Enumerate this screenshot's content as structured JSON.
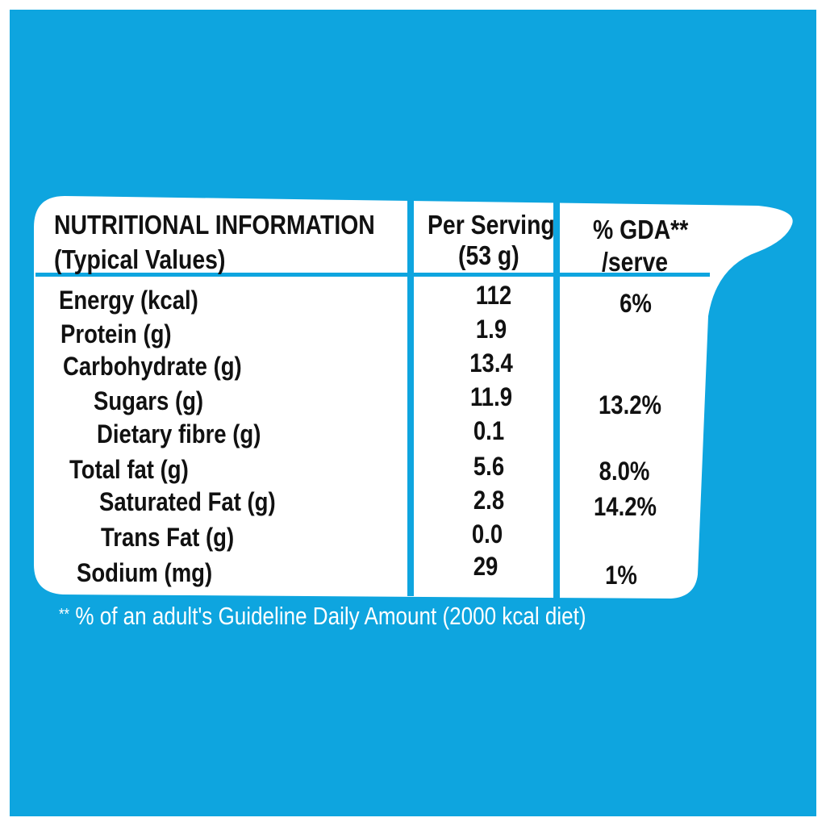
{
  "colors": {
    "background": "#0ea5df",
    "card": "#ffffff",
    "text": "#111111"
  },
  "header": {
    "title": "NUTRITIONAL INFORMATION",
    "subtitle": "(Typical Values)",
    "col_serving_line1": "Per Serving",
    "col_serving_line2": "(53 g)",
    "col_gda_line1": "% GDA**",
    "col_gda_line2": "/serve"
  },
  "rows": [
    {
      "label": "Energy (kcal)",
      "value": "112",
      "gda": "6%"
    },
    {
      "label": "Protein (g)",
      "value": "1.9",
      "gda": ""
    },
    {
      "label": "Carbohydrate (g)",
      "value": "13.4",
      "gda": ""
    },
    {
      "label": "Sugars (g)",
      "value": "11.9",
      "gda": "13.2%"
    },
    {
      "label": "Dietary fibre (g)",
      "value": "0.1",
      "gda": ""
    },
    {
      "label": "Total fat (g)",
      "value": "5.6",
      "gda": "8.0%"
    },
    {
      "label": "Saturated Fat (g)",
      "value": "2.8",
      "gda": "14.2%"
    },
    {
      "label": "Trans Fat (g)",
      "value": "0.0",
      "gda": ""
    },
    {
      "label": "Sodium (mg)",
      "value": "29",
      "gda": "1%"
    }
  ],
  "footnote": {
    "marker": "**",
    "text": " % of an adult's Guideline Daily Amount (2000 kcal diet)"
  }
}
